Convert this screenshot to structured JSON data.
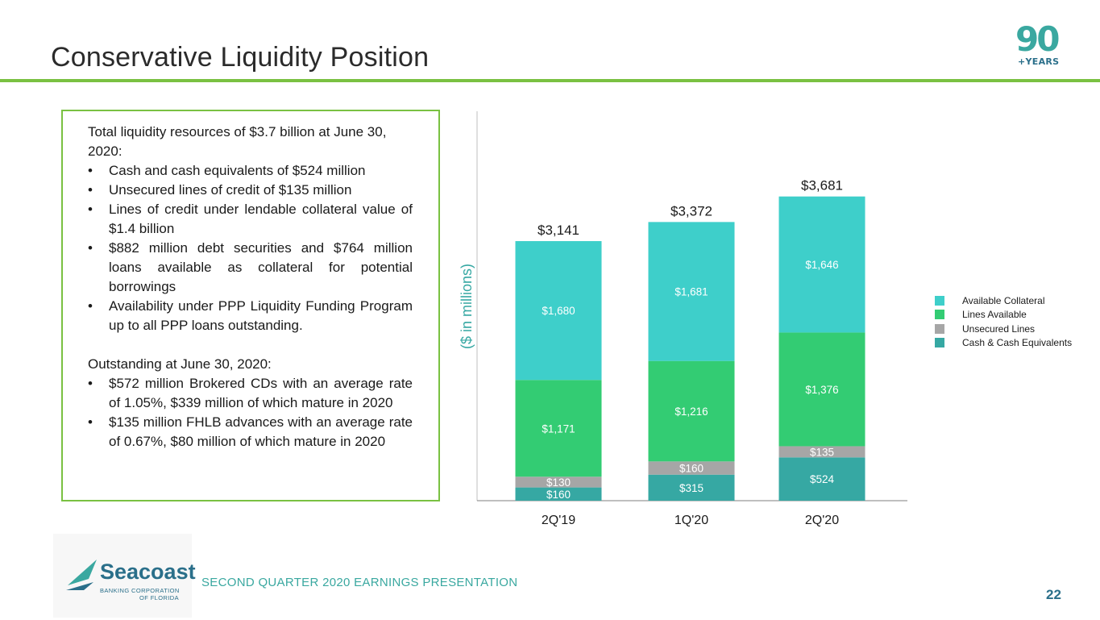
{
  "slide": {
    "title": "Conservative Liquidity Position",
    "logo_number": "90",
    "logo_sub": "+YEARS",
    "footer_text": "SECOND QUARTER 2020 EARNINGS PRESENTATION",
    "page_number": "22",
    "company_name": "Seacoast",
    "company_sub1": "BANKING CORPORATION",
    "company_sub2": "OF FLORIDA"
  },
  "textbox": {
    "intro": "Total liquidity resources of $3.7 billion at June 30, 2020:",
    "bullets1": [
      "Cash and cash equivalents of $524 million",
      "Unsecured lines of credit of $135 million",
      "Lines of credit under lendable collateral value of $1.4 billion",
      "$882 million debt securities and $764 million loans available as collateral for potential borrowings",
      "Availability under PPP Liquidity Funding Program up to all PPP loans outstanding."
    ],
    "outstanding_heading": "Outstanding at June 30, 2020:",
    "bullets2": [
      "$572 million Brokered CDs with an average rate of 1.05%, $339 million of which mature in 2020",
      "$135 million FHLB advances with an average rate of  0.67%, $80 million of which mature in 2020"
    ],
    "bullet_char": "•"
  },
  "chart_data": {
    "type": "bar",
    "stacked": true,
    "categories": [
      "2Q'19",
      "1Q'20",
      "2Q'20"
    ],
    "ylabel": "($ in millions)",
    "series": [
      {
        "name": "Cash & Cash Equivalents",
        "color": "#36a8a3",
        "values": [
          160,
          315,
          524
        ],
        "labels": [
          "$160",
          "$315",
          "$524"
        ]
      },
      {
        "name": "Unsecured Lines",
        "color": "#a6a6a6",
        "values": [
          130,
          160,
          135
        ],
        "labels": [
          "$130",
          "$160",
          "$135"
        ]
      },
      {
        "name": "Lines Available",
        "color": "#33cc73",
        "values": [
          1171,
          1216,
          1376
        ],
        "labels": [
          "$1,171",
          "$1,216",
          "$1,376"
        ]
      },
      {
        "name": "Available Collateral",
        "color": "#3ecfca",
        "values": [
          1680,
          1681,
          1646
        ],
        "labels": [
          "$1,680",
          "$1,681",
          "$1,646"
        ]
      }
    ],
    "totals": [
      "$3,141",
      "$3,372",
      "$3,681"
    ],
    "legend_order": [
      "Available Collateral",
      "Lines Available",
      "Unsecured Lines",
      "Cash & Cash Equivalents"
    ],
    "legend_position": "right",
    "grid": false
  }
}
